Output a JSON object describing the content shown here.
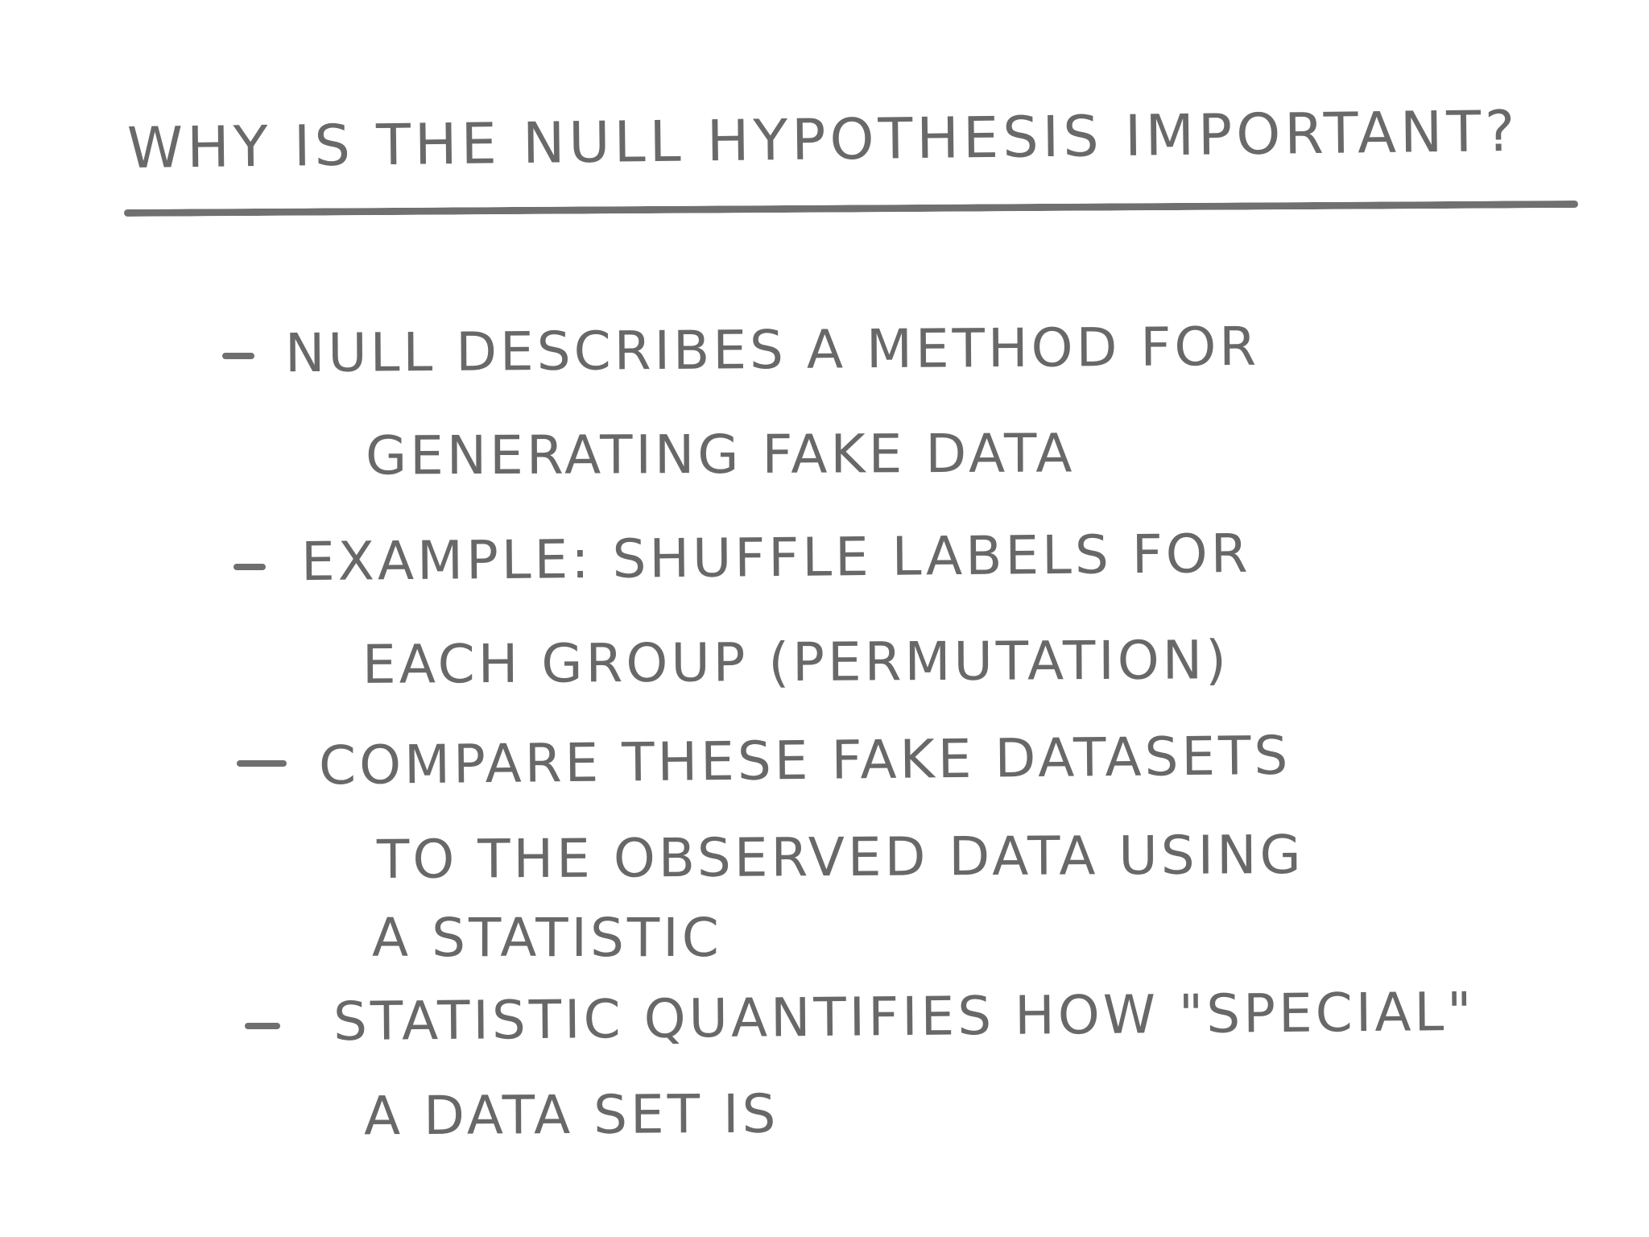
{
  "title": "WHY IS THE NULL HYPOTHESIS IMPORTANT?",
  "bullets": [
    {
      "lines": [
        "NULL DESCRIBES A METHOD FOR",
        "GENERATING FAKE DATA"
      ]
    },
    {
      "lines": [
        "EXAMPLE: SHUFFLE LABELS FOR",
        "EACH GROUP (PERMUTATION)"
      ]
    },
    {
      "lines": [
        "COMPARE THESE FAKE DATASETS",
        "TO THE OBSERVED DATA USING",
        "A STATISTIC"
      ]
    },
    {
      "lines": [
        "STATISTIC QUANTIFIES HOW \"SPECIAL\"",
        "A DATA SET IS"
      ]
    }
  ]
}
